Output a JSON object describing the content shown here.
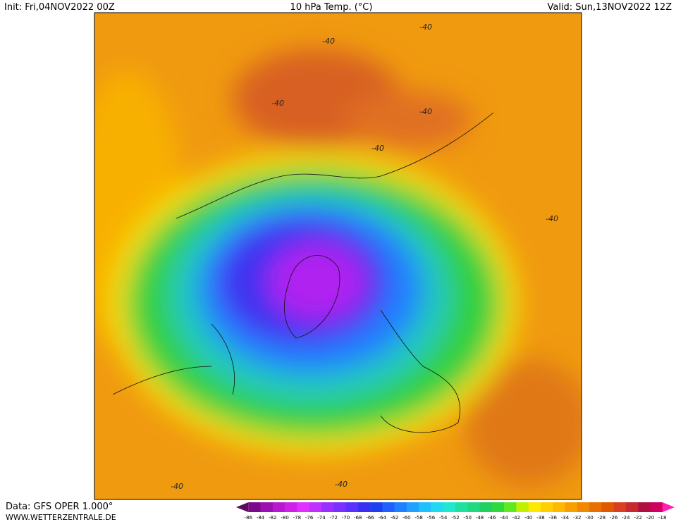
{
  "header": {
    "init": "Init: Fri,04NOV2022 00Z",
    "title": "10 hPa Temp. (°C)",
    "valid": "Valid: Sun,13NOV2022 12Z"
  },
  "footer": {
    "source": "Data: GFS OPER 1.000°",
    "site": "WWW.WETTERZENTRALE.DE"
  },
  "contour_labels": [
    "-40",
    "-40",
    "-40",
    "-40",
    "-40",
    "-40",
    "-40",
    "-40"
  ],
  "colorbar": {
    "labels": [
      -86,
      -84,
      -82,
      -80,
      -78,
      -76,
      -74,
      -72,
      -70,
      -68,
      -66,
      -64,
      -62,
      -60,
      -58,
      -56,
      -54,
      -52,
      -50,
      -48,
      -46,
      -44,
      -42,
      -40,
      -38,
      -36,
      -34,
      -32,
      -30,
      -28,
      -26,
      -24,
      -22,
      -20,
      -18
    ],
    "colors": [
      "#5c0a5c",
      "#7a0a8a",
      "#9a10b0",
      "#b818d0",
      "#d020e8",
      "#e030ff",
      "#c030ff",
      "#9a30ff",
      "#7a30ff",
      "#5a30ff",
      "#3a30f0",
      "#2040f0",
      "#2060ff",
      "#2080ff",
      "#20a0ff",
      "#20c0ff",
      "#20d8f0",
      "#20e8d0",
      "#20e0a0",
      "#20d880",
      "#20d060",
      "#30d840",
      "#60e820",
      "#c0f000",
      "#ffe800",
      "#ffd000",
      "#ffb800",
      "#f8a000",
      "#f08800",
      "#e87000",
      "#e05800",
      "#d84020",
      "#c82830",
      "#b01040",
      "#d00060",
      "#ff20b0"
    ]
  }
}
